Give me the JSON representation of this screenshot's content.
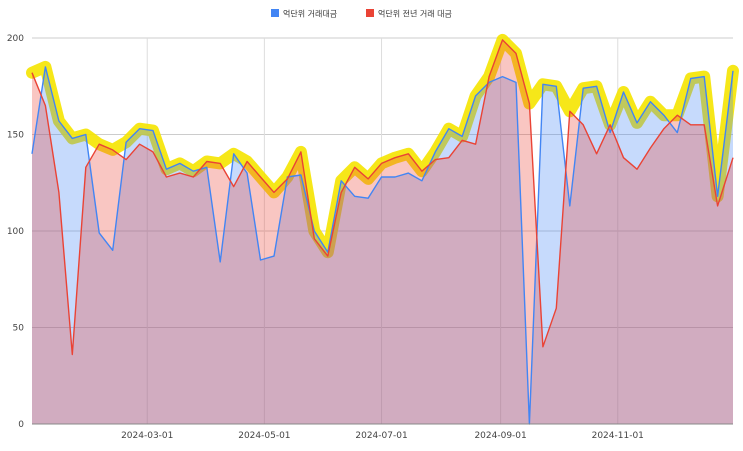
{
  "chart_data": {
    "type": "area",
    "title": "",
    "xlabel": "",
    "ylabel": "",
    "legend_position": "top-center",
    "ylim": [
      0,
      200
    ],
    "y_ticks": [
      0,
      50,
      100,
      150,
      200
    ],
    "x_ticks": [
      "2024-03-01",
      "2024-05-01",
      "2024-07-01",
      "2024-09-01",
      "2024-11-01"
    ],
    "x_range": [
      "2024-01-01",
      "2024-12-31"
    ],
    "dates": [
      "2024-01-01",
      "2024-01-08",
      "2024-01-15",
      "2024-01-22",
      "2024-01-29",
      "2024-02-05",
      "2024-02-12",
      "2024-02-19",
      "2024-02-26",
      "2024-03-04",
      "2024-03-11",
      "2024-03-18",
      "2024-03-25",
      "2024-04-01",
      "2024-04-08",
      "2024-04-15",
      "2024-04-22",
      "2024-04-29",
      "2024-05-06",
      "2024-05-13",
      "2024-05-20",
      "2024-05-27",
      "2024-06-03",
      "2024-06-10",
      "2024-06-17",
      "2024-06-24",
      "2024-07-01",
      "2024-07-08",
      "2024-07-15",
      "2024-07-22",
      "2024-07-29",
      "2024-08-05",
      "2024-08-12",
      "2024-08-19",
      "2024-08-26",
      "2024-09-02",
      "2024-09-09",
      "2024-09-16",
      "2024-09-23",
      "2024-09-30",
      "2024-10-07",
      "2024-10-14",
      "2024-10-21",
      "2024-10-28",
      "2024-11-04",
      "2024-11-11",
      "2024-11-18",
      "2024-11-25",
      "2024-12-02",
      "2024-12-09",
      "2024-12-16",
      "2024-12-23",
      "2024-12-31"
    ],
    "series": [
      {
        "name": "억단위 거래대금",
        "color": "#4285f4",
        "values": [
          140,
          185,
          157,
          148,
          150,
          99,
          90,
          146,
          153,
          152,
          132,
          135,
          131,
          133,
          84,
          140,
          130,
          85,
          87,
          128,
          129,
          100,
          89,
          126,
          118,
          117,
          128,
          128,
          130,
          126,
          141,
          153,
          149,
          170,
          177,
          180,
          177,
          0,
          176,
          175,
          113,
          174,
          175,
          151,
          172,
          156,
          167,
          160,
          151,
          179,
          180,
          118,
          183
        ]
      },
      {
        "name": "억단위 전년 거래 대금",
        "color": "#ea4335",
        "values": [
          182,
          165,
          120,
          36,
          133,
          145,
          142,
          137,
          145,
          141,
          128,
          130,
          128,
          136,
          135,
          123,
          136,
          128,
          120,
          127,
          141,
          96,
          87,
          120,
          133,
          127,
          135,
          138,
          140,
          131,
          137,
          138,
          147,
          145,
          180,
          199,
          192,
          166,
          40,
          60,
          162,
          155,
          140,
          155,
          138,
          132,
          143,
          153,
          160,
          155,
          155,
          113,
          138
        ]
      }
    ]
  }
}
